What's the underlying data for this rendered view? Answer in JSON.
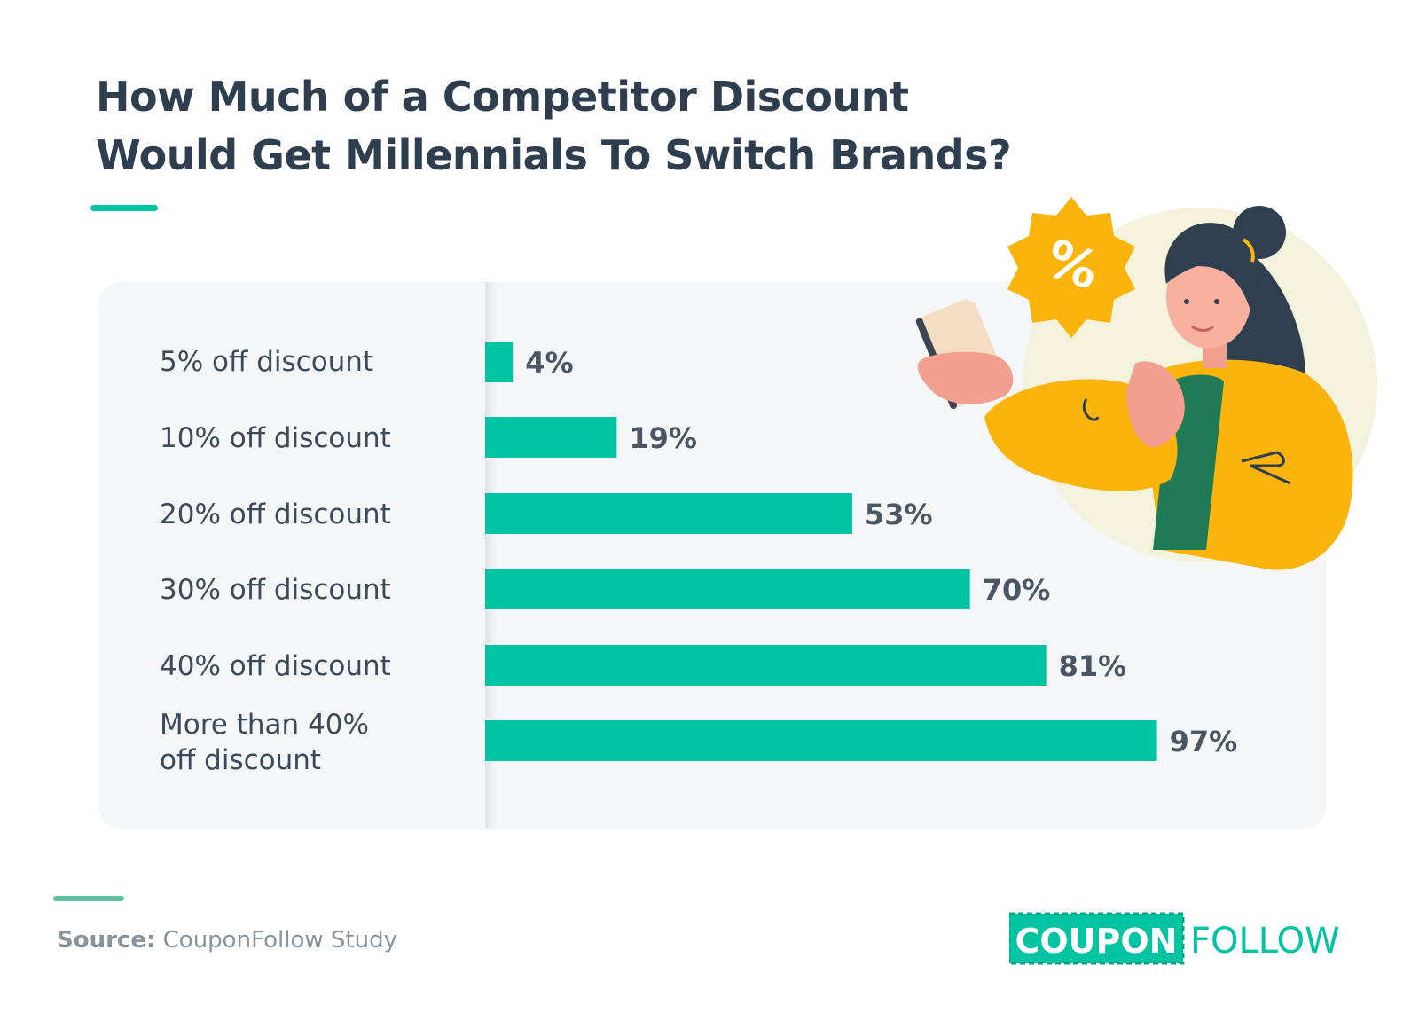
{
  "title_line1": "How Much of a Competitor Discount",
  "title_line2": "Would Get Millennials To Switch Brands?",
  "colors": {
    "bar": "#00c4a2",
    "title": "#2e3e4f",
    "panel": "#f4f6f7",
    "accent_yellow": "#fbb40b"
  },
  "chart_data": {
    "type": "bar",
    "orientation": "horizontal",
    "categories": [
      "5% off discount",
      "10% off discount",
      "20% off discount",
      "30% off discount",
      "40% off discount",
      [
        "More than 40%",
        "off discount"
      ]
    ],
    "values": [
      4,
      19,
      53,
      70,
      81,
      97
    ],
    "value_labels": [
      "4%",
      "19%",
      "53%",
      "70%",
      "81%",
      "97%"
    ],
    "xlim": [
      0,
      100
    ],
    "grid": false
  },
  "illustration": {
    "badge_text": "%",
    "icon": "woman-with-phone-illustration"
  },
  "source": {
    "label": "Source:",
    "text": "CouponFollow Study"
  },
  "logo": {
    "part1": "COUPON",
    "part2": "FOLLOW"
  }
}
